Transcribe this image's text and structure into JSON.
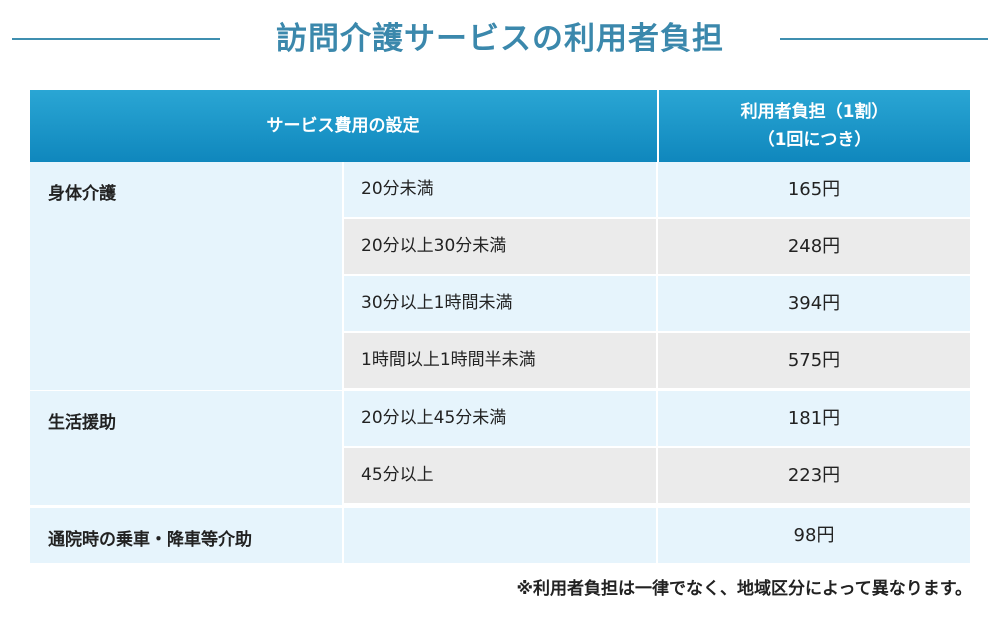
{
  "title": "訪問介護サービスの利用者負担",
  "header": {
    "service_col": "サービス費用の設定",
    "burden_col_line1": "利用者負担（1割）",
    "burden_col_line2": "（1回につき）"
  },
  "groups": [
    {
      "name": "身体介護",
      "rows": [
        {
          "duration": "20分未満",
          "price": "165円"
        },
        {
          "duration": "20分以上30分未満",
          "price": "248円"
        },
        {
          "duration": "30分以上1時間未満",
          "price": "394円"
        },
        {
          "duration": "1時間以上1時間半未満",
          "price": "575円"
        }
      ]
    },
    {
      "name": "生活援助",
      "rows": [
        {
          "duration": "20分以上45分未満",
          "price": "181円"
        },
        {
          "duration": "45分以上",
          "price": "223円"
        }
      ]
    },
    {
      "name": "通院時の乗車・降車等介助",
      "rows": [
        {
          "duration": "",
          "price": "98円"
        }
      ]
    }
  ],
  "footnote": "※利用者負担は一律でなく、地域区分によって異なります。",
  "colors": {
    "accent": "#3b88ac",
    "header_top": "#2aa6d4",
    "header_bottom": "#0f87bd",
    "row_light": "#e6f4fc",
    "row_gray": "#ebebeb"
  }
}
